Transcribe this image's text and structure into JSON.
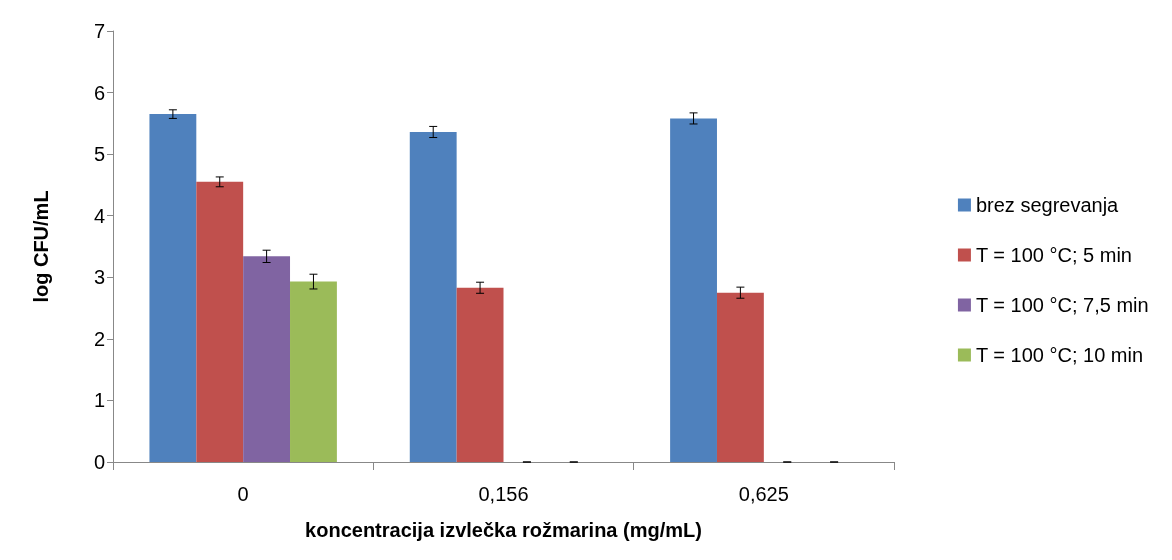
{
  "chart_data": {
    "type": "bar",
    "xlabel": "koncentracija izvlečka rožmarina (mg/mL)",
    "ylabel": "log CFU/mL",
    "categories": [
      "0",
      "0,156",
      "0,625"
    ],
    "series": [
      {
        "name": "brez segrevanja",
        "color": "#4f81bd",
        "values": [
          5.65,
          5.36,
          5.58
        ],
        "errors": [
          0.07,
          0.09,
          0.09
        ]
      },
      {
        "name": "T = 100 °C; 5 min",
        "color": "#c0504d",
        "values": [
          4.55,
          2.83,
          2.75
        ],
        "errors": [
          0.08,
          0.09,
          0.09
        ]
      },
      {
        "name": "T = 100 °C; 7,5 min",
        "color": "#8064a2",
        "values": [
          3.34,
          0,
          0
        ],
        "errors": [
          0.1,
          0,
          0
        ]
      },
      {
        "name": "T = 100 °C; 10 min",
        "color": "#9bbb59",
        "values": [
          2.93,
          0,
          0
        ],
        "errors": [
          0.12,
          0,
          0
        ]
      }
    ],
    "ylim": [
      0,
      7
    ],
    "yticks": [
      0,
      1,
      2,
      3,
      4,
      5,
      6,
      7
    ],
    "grid": false,
    "legend": "right"
  }
}
